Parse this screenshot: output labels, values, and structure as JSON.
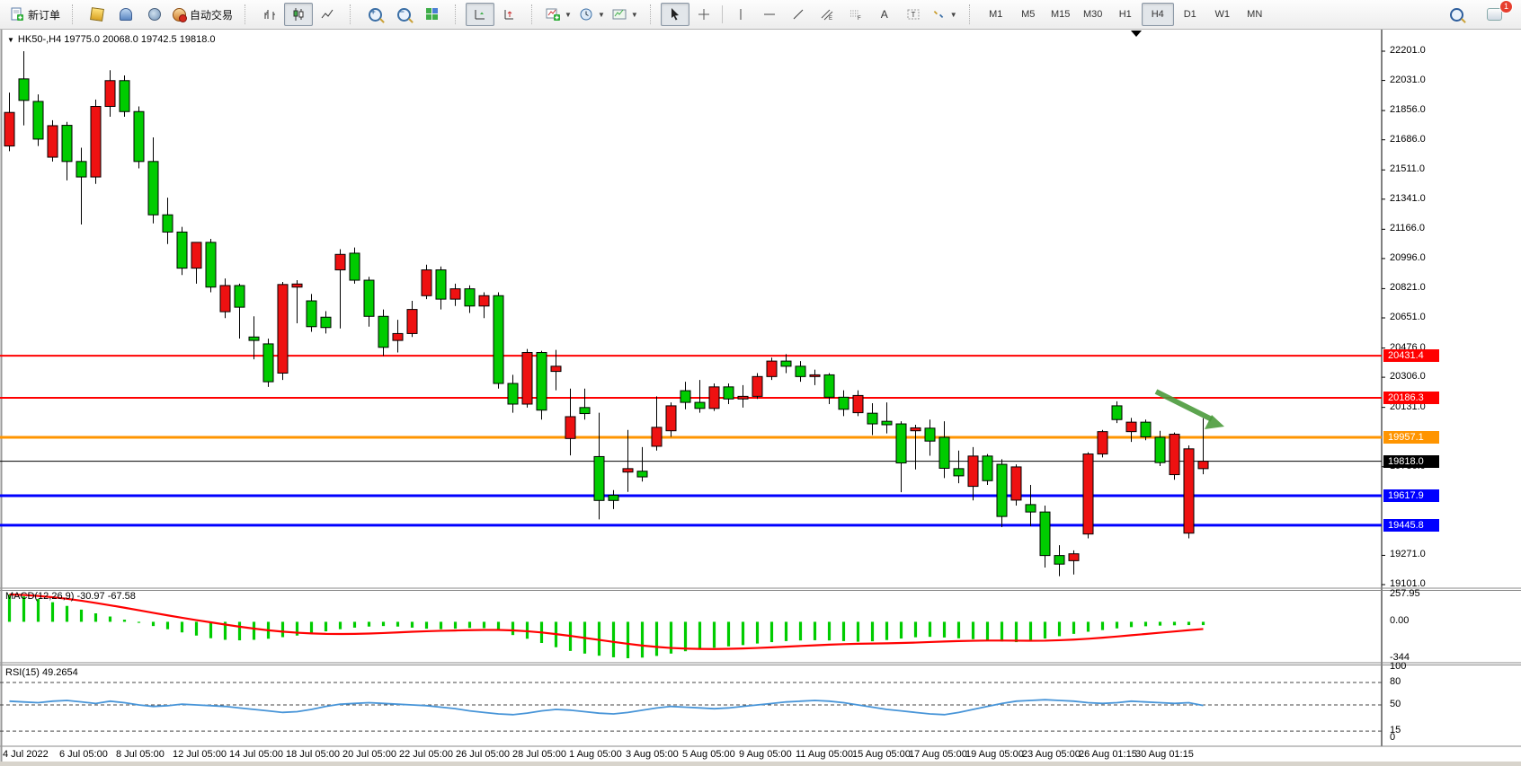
{
  "toolbar": {
    "new_order_label": "新订单",
    "auto_trading_label": "自动交易",
    "timeframes": [
      {
        "label": "M1",
        "active": false
      },
      {
        "label": "M5",
        "active": false
      },
      {
        "label": "M15",
        "active": false
      },
      {
        "label": "M30",
        "active": false
      },
      {
        "label": "H1",
        "active": false
      },
      {
        "label": "H4",
        "active": true
      },
      {
        "label": "D1",
        "active": false
      },
      {
        "label": "W1",
        "active": false
      },
      {
        "label": "MN",
        "active": false
      }
    ],
    "drawing_letters": {
      "text_a": "A",
      "text_t": "T",
      "channel": "E",
      "fibonacci": "F"
    },
    "notification_count": "1"
  },
  "chart": {
    "title_arrow": "▼",
    "symbol_ohlc_line": "HK50-,H4  19775.0 20068.0 19742.5 19818.0",
    "colors": {
      "bull_candle": "#ee1111",
      "bear_candle": "#00cc00",
      "candle_outline": "#000000",
      "macd_histogram": "#00cc00",
      "macd_signal": "#ff0000",
      "rsi_line": "#4895d8",
      "annotation_arrow": "#4b9b3c"
    }
  },
  "price_axis": {
    "ticks": [
      "22201.0",
      "22031.0",
      "21856.0",
      "21686.0",
      "21511.0",
      "21341.0",
      "21166.0",
      "20996.0",
      "20821.0",
      "20651.0",
      "20476.0",
      "20306.0",
      "20131.0",
      "19786.0",
      "19271.0",
      "19101.0"
    ],
    "level_labels": [
      {
        "label": "20431.4",
        "price": 20431.4,
        "bg": "#ff0000",
        "fg": "#ffffff",
        "thickness": 2
      },
      {
        "label": "20186.3",
        "price": 20186.3,
        "bg": "#ff0000",
        "fg": "#ffffff",
        "thickness": 2
      },
      {
        "label": "19957.1",
        "price": 19957.1,
        "bg": "#ff9500",
        "fg": "#ffffff",
        "thickness": 3
      },
      {
        "label": "19818.0",
        "price": 19818.0,
        "bg": "#000000",
        "fg": "#ffffff",
        "thickness": 1
      },
      {
        "label": "19617.9",
        "price": 19617.9,
        "bg": "#0000ff",
        "fg": "#ffffff",
        "thickness": 3
      },
      {
        "label": "19445.8",
        "price": 19445.8,
        "bg": "#0000ff",
        "fg": "#ffffff",
        "thickness": 3
      }
    ]
  },
  "macd_panel": {
    "label": "MACD(12,26,9) -30.97 -67.58",
    "axis": [
      "257.95",
      "0.00",
      "-344"
    ]
  },
  "rsi_panel": {
    "label": "RSI(15) 49.2654",
    "axis": [
      "100",
      "80",
      "50",
      "15",
      "0"
    ],
    "dashed_levels": [
      80,
      50,
      15
    ]
  },
  "chart_data": {
    "type": "candlestick",
    "symbol": "HK50-",
    "period": "H4",
    "ohlc_current": {
      "open": 19775.0,
      "high": 20068.0,
      "low": 19742.5,
      "close": 19818.0
    },
    "price_range": {
      "top": 22201.0,
      "bottom": 19101.0
    },
    "date_labels": [
      "4 Jul 2022",
      "6 Jul 05:00",
      "8 Jul 05:00",
      "12 Jul 05:00",
      "14 Jul 05:00",
      "18 Jul 05:00",
      "20 Jul 05:00",
      "22 Jul 05:00",
      "26 Jul 05:00",
      "28 Jul 05:00",
      "1 Aug 05:00",
      "3 Aug 05:00",
      "5 Aug 05:00",
      "9 Aug 05:00",
      "11 Aug 05:00",
      "15 Aug 05:00",
      "17 Aug 05:00",
      "19 Aug 05:00",
      "23 Aug 05:00",
      "26 Aug 01:15",
      "30 Aug 01:15"
    ],
    "horizontal_levels": [
      20431.4,
      20186.3,
      19957.1,
      19818.0,
      19617.9,
      19445.8
    ],
    "candles_ohlc": [
      [
        21650,
        21960,
        21620,
        21845
      ],
      [
        22040,
        22201,
        21770,
        21915
      ],
      [
        21909,
        21950,
        21650,
        21690
      ],
      [
        21585,
        21800,
        21560,
        21768
      ],
      [
        21770,
        21790,
        21450,
        21560
      ],
      [
        21560,
        21640,
        21194,
        21470
      ],
      [
        21470,
        21920,
        21430,
        21880
      ],
      [
        21880,
        22090,
        21820,
        22030
      ],
      [
        22030,
        22060,
        21820,
        21850
      ],
      [
        21850,
        21880,
        21520,
        21560
      ],
      [
        21560,
        21700,
        21200,
        21250
      ],
      [
        21250,
        21350,
        21080,
        21150
      ],
      [
        21150,
        21180,
        20900,
        20940
      ],
      [
        20940,
        21090,
        20850,
        21090
      ],
      [
        21090,
        21110,
        20800,
        20830
      ],
      [
        20687,
        20880,
        20650,
        20839
      ],
      [
        20839,
        20850,
        20531,
        20713
      ],
      [
        20540,
        20660,
        20410,
        20520
      ],
      [
        20500,
        20530,
        20250,
        20280
      ],
      [
        20330,
        20860,
        20290,
        20845
      ],
      [
        20830,
        20870,
        20620,
        20848
      ],
      [
        20750,
        20790,
        20570,
        20600
      ],
      [
        20655,
        20690,
        20560,
        20595
      ],
      [
        20930,
        21050,
        20590,
        21020
      ],
      [
        21027,
        21060,
        20850,
        20870
      ],
      [
        20870,
        20890,
        20600,
        20660
      ],
      [
        20660,
        20700,
        20430,
        20480
      ],
      [
        20520,
        20640,
        20450,
        20560
      ],
      [
        20560,
        20750,
        20540,
        20700
      ],
      [
        20780,
        20960,
        20760,
        20930
      ],
      [
        20930,
        20950,
        20700,
        20760
      ],
      [
        20760,
        20850,
        20720,
        20820
      ],
      [
        20820,
        20840,
        20680,
        20720
      ],
      [
        20720,
        20800,
        20650,
        20780
      ],
      [
        20780,
        20800,
        20240,
        20270
      ],
      [
        20270,
        20320,
        20100,
        20150
      ],
      [
        20150,
        20470,
        20130,
        20450
      ],
      [
        20450,
        20460,
        20060,
        20115
      ],
      [
        20340,
        20465,
        20230,
        20370
      ],
      [
        19950,
        20240,
        19852,
        20077
      ],
      [
        20130,
        20240,
        20060,
        20095
      ],
      [
        19845,
        20100,
        19480,
        19590
      ],
      [
        19620,
        19650,
        19540,
        19590
      ],
      [
        19755,
        20000,
        19640,
        19775
      ],
      [
        19760,
        19900,
        19700,
        19727
      ],
      [
        19905,
        20195,
        19880,
        20015
      ],
      [
        19995,
        20160,
        19960,
        20140
      ],
      [
        20228,
        20280,
        20120,
        20160
      ],
      [
        20160,
        20290,
        20100,
        20125
      ],
      [
        20125,
        20270,
        20110,
        20250
      ],
      [
        20250,
        20270,
        20150,
        20180
      ],
      [
        20180,
        20260,
        20130,
        20195
      ],
      [
        20195,
        20330,
        20180,
        20310
      ],
      [
        20310,
        20420,
        20290,
        20400
      ],
      [
        20400,
        20440,
        20330,
        20370
      ],
      [
        20370,
        20400,
        20280,
        20310
      ],
      [
        20310,
        20350,
        20260,
        20320
      ],
      [
        20320,
        20330,
        20150,
        20190
      ],
      [
        20190,
        20230,
        20080,
        20120
      ],
      [
        20100,
        20230,
        20080,
        20200
      ],
      [
        20097,
        20155,
        19970,
        20035
      ],
      [
        20050,
        20160,
        19980,
        20030
      ],
      [
        20035,
        20050,
        19638,
        19808
      ],
      [
        19995,
        20030,
        19770,
        20012
      ],
      [
        20010,
        20060,
        19850,
        19935
      ],
      [
        19957,
        20050,
        19720,
        19777
      ],
      [
        19775,
        19880,
        19690,
        19733
      ],
      [
        19672,
        19900,
        19590,
        19848
      ],
      [
        19848,
        19860,
        19680,
        19705
      ],
      [
        19800,
        19830,
        19435,
        19497
      ],
      [
        19592,
        19800,
        19560,
        19785
      ],
      [
        19566,
        19680,
        19440,
        19523
      ],
      [
        19523,
        19560,
        19200,
        19270
      ],
      [
        19270,
        19330,
        19150,
        19220
      ],
      [
        19240,
        19300,
        19160,
        19280
      ],
      [
        19395,
        19870,
        19370,
        19860
      ],
      [
        19860,
        20000,
        19840,
        19990
      ],
      [
        20140,
        20166,
        20040,
        20060
      ],
      [
        19990,
        20070,
        19930,
        20045
      ],
      [
        20045,
        20060,
        19940,
        19960
      ],
      [
        19957,
        19995,
        19790,
        19810
      ],
      [
        19740,
        19985,
        19710,
        19975
      ],
      [
        19400,
        19910,
        19370,
        19890
      ],
      [
        19775,
        20068,
        19742.5,
        19818
      ]
    ],
    "indicators": {
      "macd": {
        "params": "12,26,9",
        "value": -30.97,
        "signal_value": -67.58,
        "range": {
          "max": 257.95,
          "min": -344
        },
        "histogram": [
          258,
          240,
          215,
          185,
          150,
          115,
          80,
          50,
          20,
          -10,
          -40,
          -70,
          -100,
          -130,
          -155,
          -170,
          -175,
          -170,
          -160,
          -145,
          -130,
          -110,
          -90,
          -70,
          -55,
          -45,
          -40,
          -45,
          -55,
          -65,
          -70,
          -65,
          -58,
          -60,
          -85,
          -125,
          -160,
          -200,
          -240,
          -275,
          -300,
          -320,
          -335,
          -344,
          -338,
          -322,
          -300,
          -278,
          -260,
          -245,
          -232,
          -220,
          -205,
          -192,
          -182,
          -176,
          -174,
          -176,
          -182,
          -188,
          -184,
          -172,
          -158,
          -146,
          -142,
          -148,
          -156,
          -164,
          -174,
          -186,
          -192,
          -180,
          -158,
          -136,
          -114,
          -94,
          -78,
          -62,
          -50,
          -42,
          -36,
          -33,
          -31,
          -31
        ],
        "signal": [
          258,
          253,
          244,
          232,
          217,
          199,
          178,
          156,
          133,
          109,
          85,
          61,
          38,
          16,
          -5,
          -26,
          -46,
          -64,
          -80,
          -93,
          -103,
          -110,
          -114,
          -115,
          -114,
          -111,
          -106,
          -100,
          -94,
          -89,
          -85,
          -82,
          -79,
          -77,
          -77,
          -81,
          -89,
          -101,
          -116,
          -133,
          -152,
          -171,
          -190,
          -208,
          -224,
          -237,
          -247,
          -253,
          -256,
          -257,
          -255,
          -252,
          -247,
          -241,
          -235,
          -228,
          -222,
          -216,
          -211,
          -207,
          -205,
          -203,
          -200,
          -196,
          -191,
          -186,
          -182,
          -179,
          -177,
          -177,
          -178,
          -179,
          -178,
          -174,
          -168,
          -160,
          -150,
          -139,
          -127,
          -115,
          -103,
          -91,
          -79,
          -68
        ]
      },
      "rsi": {
        "params": "15",
        "value": 49.2654,
        "values": [
          55,
          54,
          53,
          55,
          56,
          54,
          52,
          55,
          53,
          50,
          48,
          49,
          51,
          50,
          49,
          48,
          46,
          44,
          42,
          40,
          41,
          44,
          48,
          51,
          52,
          53,
          52,
          51,
          50,
          49,
          47,
          45,
          42,
          40,
          38,
          37,
          39,
          42,
          44,
          43,
          41,
          39,
          38,
          40,
          43,
          46,
          48,
          47,
          46,
          45,
          46,
          48,
          50,
          52,
          54,
          55,
          56,
          55,
          53,
          50,
          47,
          44,
          42,
          40,
          38,
          37,
          40,
          44,
          48,
          52,
          55,
          56,
          57,
          56,
          55,
          53,
          52,
          53,
          55,
          54,
          53,
          52,
          53,
          49.3
        ]
      }
    },
    "annotation": {
      "type": "arrow",
      "from_xy": [
        1286,
        436
      ],
      "to_xy": [
        1348,
        467
      ],
      "color": "#4b9b3c"
    }
  }
}
